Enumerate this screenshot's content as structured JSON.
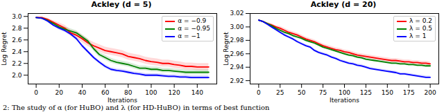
{
  "caption": "2: The study of α (for HuBO) and λ (for HD-HuBO) in terms of best function",
  "chart_data": [
    {
      "type": "line",
      "title": "Ackley (d = 5)",
      "x_label": "Iterations",
      "y_label": "Log Regret",
      "grid": false,
      "legend": "upper right",
      "x": [
        0,
        5,
        10,
        15,
        20,
        25,
        30,
        35,
        40,
        45,
        50,
        55,
        60,
        65,
        70,
        75,
        80,
        85,
        90,
        95,
        100,
        105,
        110,
        115,
        120,
        125,
        130,
        135,
        140,
        145,
        150
      ],
      "xlim": [
        -7,
        157
      ],
      "xticks": [
        0,
        20,
        40,
        60,
        80,
        100,
        120,
        140
      ],
      "ylim": [
        1.85,
        3.05
      ],
      "yticks": [
        {
          "value": 2,
          "label": "2.0"
        },
        {
          "value": 2.2,
          "label": "2.2"
        },
        {
          "value": 2.4,
          "label": "2.4"
        },
        {
          "value": 2.6,
          "label": "2.6"
        },
        {
          "value": 2.8,
          "label": "2.8"
        },
        {
          "value": 3,
          "label": "3.0"
        }
      ],
      "series": [
        {
          "name": "α = −0.9",
          "color": "#ff0000",
          "values": [
            2.98,
            2.98,
            2.95,
            2.9,
            2.85,
            2.8,
            2.72,
            2.68,
            2.62,
            2.55,
            2.5,
            2.46,
            2.42,
            2.4,
            2.38,
            2.36,
            2.32,
            2.3,
            2.28,
            2.25,
            2.23,
            2.22,
            2.2,
            2.2,
            2.18,
            2.17,
            2.15,
            2.15,
            2.14,
            2.14,
            2.14
          ],
          "error": [
            0.01,
            0.01,
            0.02,
            0.03,
            0.04,
            0.05,
            0.05,
            0.06,
            0.06,
            0.06,
            0.06,
            0.06,
            0.06,
            0.06,
            0.06,
            0.06,
            0.06,
            0.06,
            0.06,
            0.06,
            0.06,
            0.06,
            0.06,
            0.06,
            0.06,
            0.06,
            0.06,
            0.06,
            0.06,
            0.06,
            0.06
          ]
        },
        {
          "name": "α = −0.95",
          "color": "#008000",
          "values": [
            2.98,
            2.97,
            2.93,
            2.88,
            2.82,
            2.78,
            2.75,
            2.72,
            2.65,
            2.58,
            2.45,
            2.35,
            2.3,
            2.25,
            2.22,
            2.2,
            2.18,
            2.15,
            2.12,
            2.12,
            2.1,
            2.1,
            2.08,
            2.08,
            2.07,
            2.06,
            2.05,
            2.05,
            2.05,
            2.05,
            2.05
          ],
          "error": [
            0.01,
            0.01,
            0.02,
            0.03,
            0.03,
            0.04,
            0.04,
            0.04,
            0.04,
            0.04,
            0.04,
            0.04,
            0.04,
            0.04,
            0.04,
            0.04,
            0.04,
            0.04,
            0.04,
            0.04,
            0.04,
            0.04,
            0.04,
            0.04,
            0.04,
            0.04,
            0.04,
            0.04,
            0.04,
            0.04,
            0.04
          ]
        },
        {
          "name": "α = −1",
          "color": "#0000ff",
          "values": [
            2.98,
            2.97,
            2.92,
            2.85,
            2.8,
            2.76,
            2.7,
            2.62,
            2.5,
            2.4,
            2.3,
            2.22,
            2.15,
            2.1,
            2.08,
            2.07,
            2.05,
            2.03,
            2.02,
            2.0,
            2.0,
            2.0,
            1.99,
            1.98,
            1.98,
            1.97,
            1.97,
            1.96,
            1.96,
            1.96,
            1.96
          ],
          "error": [
            0.01,
            0.01,
            0.02,
            0.02,
            0.03,
            0.03,
            0.03,
            0.03,
            0.03,
            0.03,
            0.03,
            0.03,
            0.03,
            0.03,
            0.03,
            0.03,
            0.03,
            0.03,
            0.03,
            0.03,
            0.03,
            0.03,
            0.03,
            0.03,
            0.03,
            0.03,
            0.03,
            0.03,
            0.03,
            0.03,
            0.03
          ]
        }
      ]
    },
    {
      "type": "line",
      "title": "Ackley (d = 20)",
      "x_label": "Iterations",
      "y_label": "Log Regret",
      "grid": false,
      "legend": "upper right",
      "x": [
        0,
        5,
        10,
        15,
        20,
        25,
        30,
        35,
        40,
        45,
        50,
        55,
        60,
        65,
        70,
        75,
        80,
        85,
        90,
        95,
        100,
        105,
        110,
        115,
        120,
        125,
        130,
        135,
        140,
        145,
        150,
        155,
        160,
        165,
        170,
        175,
        180,
        185,
        190,
        195,
        200
      ],
      "xlim": [
        -10,
        210
      ],
      "xticks": [
        0,
        25,
        50,
        75,
        100,
        125,
        150,
        175,
        200
      ],
      "ylim": [
        2.915,
        3.02
      ],
      "yticks": [
        2.92,
        2.94,
        2.96,
        2.98,
        {
          "value": 3,
          "label": "3.00"
        },
        3.02
      ],
      "series": [
        {
          "name": "λ = 0.2",
          "color": "#ff0000",
          "values": [
            3.01,
            3.008,
            3.005,
            3.003,
            3.0,
            2.998,
            2.995,
            2.992,
            2.99,
            2.988,
            2.985,
            2.982,
            2.98,
            2.978,
            2.975,
            2.972,
            2.97,
            2.968,
            2.966,
            2.965,
            2.963,
            2.962,
            2.96,
            2.958,
            2.957,
            2.956,
            2.955,
            2.954,
            2.953,
            2.952,
            2.951,
            2.95,
            2.95,
            2.949,
            2.948,
            2.948,
            2.947,
            2.947,
            2.946,
            2.946,
            2.945
          ],
          "error": [
            0.001,
            0.001,
            0.002,
            0.002,
            0.002,
            0.003,
            0.003,
            0.003,
            0.003,
            0.003,
            0.003,
            0.003,
            0.003,
            0.003,
            0.003,
            0.003,
            0.003,
            0.003,
            0.003,
            0.003,
            0.003,
            0.003,
            0.003,
            0.003,
            0.003,
            0.003,
            0.003,
            0.003,
            0.003,
            0.003,
            0.003,
            0.003,
            0.003,
            0.003,
            0.003,
            0.003,
            0.003,
            0.003,
            0.003,
            0.003,
            0.003
          ]
        },
        {
          "name": "λ = 0.5",
          "color": "#008000",
          "values": [
            3.01,
            3.008,
            3.005,
            3.002,
            2.998,
            2.995,
            2.992,
            2.99,
            2.987,
            2.985,
            2.983,
            2.98,
            2.978,
            2.976,
            2.973,
            2.97,
            2.968,
            2.966,
            2.964,
            2.962,
            2.96,
            2.958,
            2.957,
            2.955,
            2.954,
            2.952,
            2.951,
            2.95,
            2.949,
            2.948,
            2.947,
            2.946,
            2.946,
            2.945,
            2.945,
            2.944,
            2.944,
            2.943,
            2.943,
            2.942,
            2.942
          ],
          "error": [
            0.001,
            0.001,
            0.001,
            0.002,
            0.002,
            0.002,
            0.002,
            0.002,
            0.002,
            0.002,
            0.002,
            0.002,
            0.002,
            0.002,
            0.002,
            0.002,
            0.002,
            0.002,
            0.002,
            0.002,
            0.002,
            0.002,
            0.002,
            0.002,
            0.002,
            0.002,
            0.002,
            0.002,
            0.002,
            0.002,
            0.002,
            0.002,
            0.002,
            0.002,
            0.002,
            0.002,
            0.002,
            0.002,
            0.002,
            0.002,
            0.002
          ]
        },
        {
          "name": "λ = 1",
          "color": "#0000ff",
          "values": [
            3.01,
            3.008,
            3.004,
            3.0,
            2.996,
            2.992,
            2.988,
            2.985,
            2.982,
            2.978,
            2.975,
            2.972,
            2.97,
            2.965,
            2.962,
            2.96,
            2.958,
            2.955,
            2.953,
            2.95,
            2.948,
            2.946,
            2.945,
            2.943,
            2.942,
            2.94,
            2.938,
            2.937,
            2.936,
            2.935,
            2.934,
            2.933,
            2.932,
            2.93,
            2.93,
            2.929,
            2.928,
            2.927,
            2.926,
            2.925,
            2.925
          ],
          "error": [
            0.001,
            0.001,
            0.001,
            0.002,
            0.002,
            0.002,
            0.002,
            0.002,
            0.002,
            0.002,
            0.002,
            0.002,
            0.002,
            0.002,
            0.002,
            0.002,
            0.002,
            0.002,
            0.002,
            0.002,
            0.002,
            0.002,
            0.002,
            0.002,
            0.002,
            0.002,
            0.002,
            0.002,
            0.002,
            0.002,
            0.002,
            0.002,
            0.002,
            0.002,
            0.002,
            0.002,
            0.002,
            0.002,
            0.002,
            0.002,
            0.002
          ]
        }
      ]
    }
  ]
}
